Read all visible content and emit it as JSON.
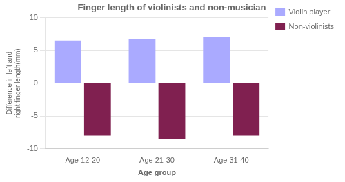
{
  "chart_data": {
    "type": "bar",
    "title": "Finger length of violinists and non-musician",
    "ylabel": "Difference in left and\nright finger length(mm)",
    "xlabel": "Age group",
    "categories": [
      "Age 12-20",
      "Age 21-30",
      "Age 31-40"
    ],
    "series": [
      {
        "name": "Violin player",
        "color": "#aaaaff",
        "values": [
          6.5,
          6.8,
          7.0
        ]
      },
      {
        "name": "Non-violinists",
        "color": "#802050",
        "values": [
          -8.0,
          -8.5,
          -8.0
        ]
      }
    ],
    "ylim": [
      -10,
      10
    ],
    "yticks": [
      -10,
      -5,
      0,
      5,
      10
    ],
    "grid": true,
    "legend": "right"
  }
}
